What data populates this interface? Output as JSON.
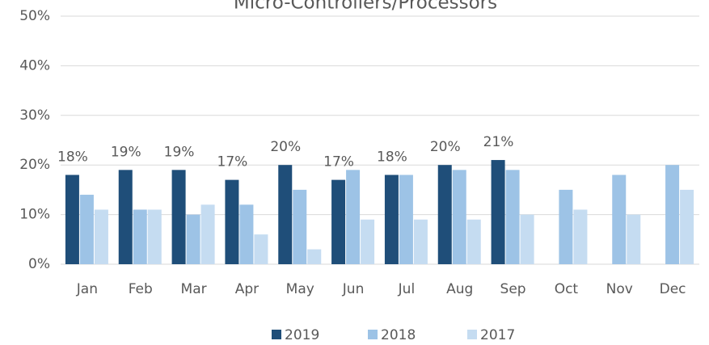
{
  "chart_data": {
    "type": "bar",
    "title": "Micro-Controllers/Processors",
    "categories": [
      "Jan",
      "Feb",
      "Mar",
      "Apr",
      "May",
      "Jun",
      "Jul",
      "Aug",
      "Sep",
      "Oct",
      "Nov",
      "Dec"
    ],
    "series": [
      {
        "name": "2019",
        "color": "#1f4e79",
        "values": [
          18,
          19,
          19,
          17,
          20,
          17,
          18,
          20,
          21,
          null,
          null,
          null
        ],
        "value_labels": [
          "18%",
          "19%",
          "19%",
          "17%",
          "20%",
          "17%",
          "18%",
          "20%",
          "21%",
          null,
          null,
          null
        ]
      },
      {
        "name": "2018",
        "color": "#9dc3e6",
        "values": [
          14,
          11,
          10,
          12,
          15,
          19,
          18,
          19,
          19,
          15,
          18,
          20
        ]
      },
      {
        "name": "2017",
        "color": "#c5dcf1",
        "values": [
          11,
          11,
          12,
          6,
          3,
          9,
          9,
          9,
          10,
          11,
          10,
          15
        ]
      }
    ],
    "ylim": [
      0,
      50
    ],
    "yticks": [
      {
        "value": 0,
        "label": "0%"
      },
      {
        "value": 10,
        "label": "10%"
      },
      {
        "value": 20,
        "label": "20%"
      },
      {
        "value": 30,
        "label": "30%"
      },
      {
        "value": 40,
        "label": "40%"
      },
      {
        "value": 50,
        "label": "50%"
      }
    ],
    "grid": true,
    "legend": "bottom"
  }
}
